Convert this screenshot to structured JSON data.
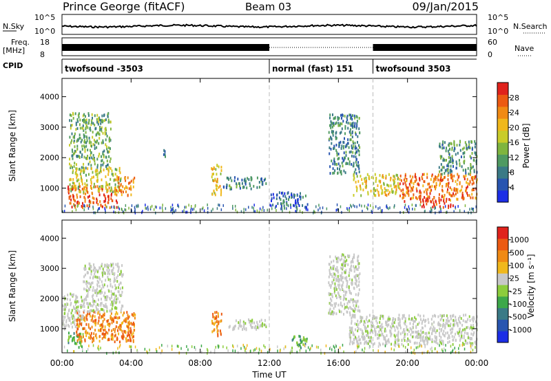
{
  "header": {
    "station": "Prince George (fitACF)",
    "beam": "Beam 03",
    "date": "09/Jan/2015"
  },
  "noise_panel": {
    "left_label": "N.Sky",
    "left_ticks": [
      "10^5",
      "10^0"
    ],
    "right_label": "N.Search",
    "right_ticks": [
      "10^5",
      "10^0"
    ]
  },
  "freq_panel": {
    "left_label_1": "Freq.",
    "left_label_2": "[MHz]",
    "left_ticks": [
      "18",
      "8"
    ],
    "right_label": "Nave",
    "right_ticks": [
      "60",
      "0"
    ]
  },
  "cpid": {
    "label": "CPID",
    "segments": [
      {
        "name": "twofsound -3503",
        "start_hour": 0,
        "end_hour": 12
      },
      {
        "name": "normal (fast) 151",
        "start_hour": 12,
        "end_hour": 18
      },
      {
        "name": "twofsound 3503",
        "start_hour": 18,
        "end_hour": 24
      }
    ]
  },
  "time_axis": {
    "label": "Time UT",
    "ticks": [
      "00:00",
      "04:00",
      "08:00",
      "12:00",
      "16:00",
      "20:00",
      "00:00"
    ]
  },
  "chart_data": [
    {
      "type": "heatmap",
      "panel": "power",
      "ylabel": "Slant Range [km]",
      "ylim": [
        200,
        4600
      ],
      "yticks": [
        "1000",
        "2000",
        "3000",
        "4000"
      ],
      "colorbar": {
        "label": "Power [dB]",
        "ticks": [
          "28",
          "24",
          "20",
          "16",
          "12",
          "8",
          "4"
        ],
        "range": [
          0,
          30
        ],
        "colors": [
          "#1c2ee6",
          "#2855b0",
          "#3a7a86",
          "#4f9a62",
          "#7fb53f",
          "#c9cc2a",
          "#f0b81c",
          "#f08a14",
          "#ec5a12",
          "#e0221c"
        ]
      },
      "regions": [
        {
          "hours": [
            0.3,
            3.2
          ],
          "range_km": [
            400,
            1100
          ],
          "value": 26
        },
        {
          "hours": [
            0.4,
            3.4
          ],
          "range_km": [
            900,
            1700
          ],
          "value": 16
        },
        {
          "hours": [
            0.4,
            2.8
          ],
          "range_km": [
            1700,
            3500
          ],
          "value": 12
        },
        {
          "hours": [
            3.0,
            4.2
          ],
          "range_km": [
            800,
            1400
          ],
          "value": 22
        },
        {
          "hours": [
            5.8,
            6.0
          ],
          "range_km": [
            1900,
            2300
          ],
          "value": 6
        },
        {
          "hours": [
            8.6,
            9.2
          ],
          "range_km": [
            800,
            1800
          ],
          "value": 18
        },
        {
          "hours": [
            9.3,
            11.8
          ],
          "range_km": [
            1000,
            1400
          ],
          "value": 8
        },
        {
          "hours": [
            12.0,
            14.2
          ],
          "range_km": [
            400,
            900
          ],
          "value": 6
        },
        {
          "hours": [
            15.4,
            17.2
          ],
          "range_km": [
            1500,
            3500
          ],
          "value": 8
        },
        {
          "hours": [
            16.8,
            19.5
          ],
          "range_km": [
            800,
            1500
          ],
          "value": 18
        },
        {
          "hours": [
            19.5,
            24.0
          ],
          "range_km": [
            600,
            1500
          ],
          "value": 24
        },
        {
          "hours": [
            20.6,
            22.6
          ],
          "range_km": [
            400,
            700
          ],
          "value": 28
        },
        {
          "hours": [
            21.8,
            24.0
          ],
          "range_km": [
            1500,
            2600
          ],
          "value": 10
        }
      ]
    },
    {
      "type": "heatmap",
      "panel": "velocity",
      "ylabel": "Slant Range [km]",
      "ylim": [
        200,
        4600
      ],
      "yticks": [
        "1000",
        "2000",
        "3000",
        "4000"
      ],
      "colorbar": {
        "label": "Velocity [m s⁻¹]",
        "ticks": [
          "1000",
          "500",
          "100",
          "25",
          "-25",
          "-100",
          "-500",
          "-1000"
        ],
        "colors": [
          "#1c2ee6",
          "#2855b0",
          "#3a7a86",
          "#3da84a",
          "#8ccd3c",
          "#c8c8c8",
          "#f0b81c",
          "#f08a14",
          "#ec5a12",
          "#e0221c"
        ]
      },
      "regions": [
        {
          "hours": [
            0.0,
            1.2
          ],
          "range_km": [
            1000,
            2200
          ],
          "value_class": "ground"
        },
        {
          "hours": [
            0.3,
            1.2
          ],
          "range_km": [
            400,
            900
          ],
          "value_class": "toward"
        },
        {
          "hours": [
            0.8,
            4.2
          ],
          "range_km": [
            600,
            1600
          ],
          "value_class": "away"
        },
        {
          "hours": [
            1.2,
            3.5
          ],
          "range_km": [
            1600,
            3200
          ],
          "value_class": "ground"
        },
        {
          "hours": [
            8.6,
            9.2
          ],
          "range_km": [
            800,
            1600
          ],
          "value_class": "away"
        },
        {
          "hours": [
            9.6,
            11.8
          ],
          "range_km": [
            1000,
            1350
          ],
          "value_class": "ground"
        },
        {
          "hours": [
            13.2,
            14.2
          ],
          "range_km": [
            400,
            800
          ],
          "value_class": "toward"
        },
        {
          "hours": [
            15.4,
            17.2
          ],
          "range_km": [
            1500,
            3500
          ],
          "value_class": "ground"
        },
        {
          "hours": [
            16.6,
            24.0
          ],
          "range_km": [
            500,
            1500
          ],
          "value_class": "ground"
        }
      ]
    }
  ]
}
